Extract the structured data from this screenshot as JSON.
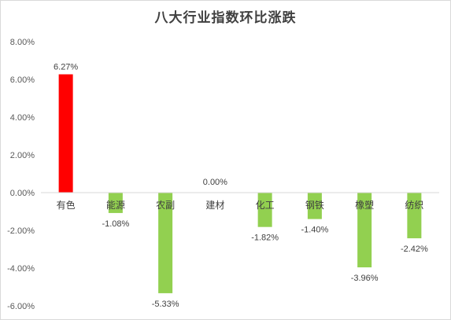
{
  "chart_data": {
    "type": "bar",
    "title": "八大行业指数环比涨跌",
    "xlabel": "",
    "ylabel": "",
    "categories": [
      "有色",
      "能源",
      "农副",
      "建材",
      "化工",
      "钢铁",
      "橡塑",
      "纺织"
    ],
    "values": [
      6.27,
      -1.08,
      -5.33,
      0.0,
      -1.82,
      -1.4,
      -3.96,
      -2.42
    ],
    "value_labels": [
      "6.27%",
      "-1.08%",
      "-5.33%",
      "0.00%",
      "-1.82%",
      "-1.40%",
      "-3.96%",
      "-2.42%"
    ],
    "ylim": [
      -6,
      8
    ],
    "yticks": [
      8,
      6,
      4,
      2,
      0,
      -2,
      -4,
      -6
    ],
    "ytick_labels": [
      "8.00%",
      "6.00%",
      "4.00%",
      "2.00%",
      "0.00%",
      "-2.00%",
      "-4.00%",
      "-6.00%"
    ],
    "grid": false,
    "legend": "none",
    "colors": {
      "positive": "#ff0000",
      "negative": "#92d050",
      "axis": "#d9d9d9"
    }
  }
}
